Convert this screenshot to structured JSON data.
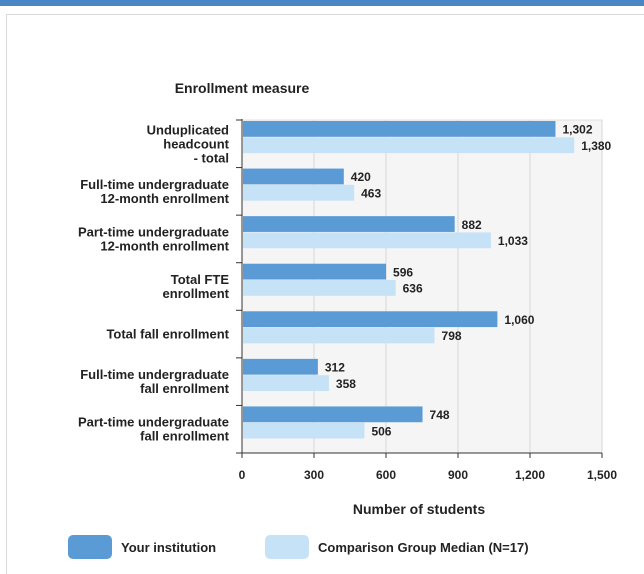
{
  "chart_data": {
    "type": "bar",
    "orientation": "horizontal",
    "title": "",
    "ylabel": "Enrollment measure",
    "xlabel": "Number of students",
    "categories": [
      [
        "Unduplicated",
        "headcount",
        "- total"
      ],
      [
        "Full-time undergraduate",
        "12-month enrollment"
      ],
      [
        "Part-time undergraduate",
        "12-month enrollment"
      ],
      [
        "Total FTE",
        "enrollment"
      ],
      [
        "Total fall enrollment"
      ],
      [
        "Full-time undergraduate",
        "fall enrollment"
      ],
      [
        "Part-time undergraduate",
        "fall enrollment"
      ]
    ],
    "series": [
      {
        "name": "Your institution",
        "color": "#5b9bd5",
        "values": [
          1302,
          420,
          882,
          596,
          1060,
          312,
          748
        ],
        "labels": [
          "1,302",
          "420",
          "882",
          "596",
          "1,060",
          "312",
          "748"
        ]
      },
      {
        "name": "Comparison Group Median (N=17)",
        "color": "#c6e2f7",
        "values": [
          1380,
          463,
          1033,
          636,
          798,
          358,
          506
        ],
        "labels": [
          "1,380",
          "463",
          "1,033",
          "636",
          "798",
          "358",
          "506"
        ]
      }
    ],
    "xlim": [
      0,
      1500
    ],
    "xticks": [
      0,
      300,
      600,
      900,
      1200,
      1500
    ],
    "xtick_labels": [
      "0",
      "300",
      "600",
      "900",
      "1,200",
      "1,500"
    ],
    "grid": true,
    "legend_position": "bottom"
  }
}
